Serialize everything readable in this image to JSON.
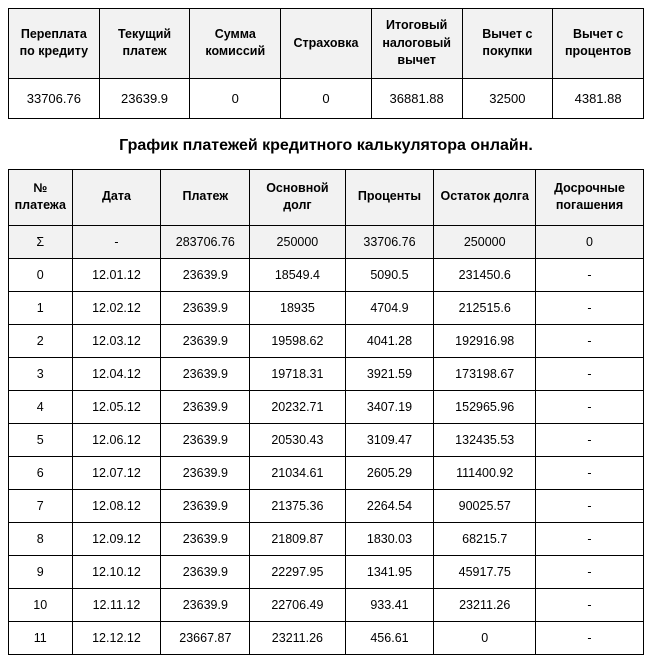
{
  "summary": {
    "headers": [
      "Переплата по кредиту",
      "Текущий платеж",
      "Сумма комиссий",
      "Страховка",
      "Итоговый налоговый вычет",
      "Вычет с покупки",
      "Вычет с процентов"
    ],
    "values": [
      "33706.76",
      "23639.9",
      "0",
      "0",
      "36881.88",
      "32500",
      "4381.88"
    ]
  },
  "title": "График платежей кредитного калькулятора онлайн.",
  "schedule": {
    "headers": [
      "№ платежа",
      "Дата",
      "Платеж",
      "Основной долг",
      "Проценты",
      "Остаток долга",
      "Досрочные погашения"
    ],
    "sigma": [
      "Σ",
      "-",
      "283706.76",
      "250000",
      "33706.76",
      "250000",
      "0"
    ],
    "rows": [
      [
        "0",
        "12.01.12",
        "23639.9",
        "18549.4",
        "5090.5",
        "231450.6",
        "-"
      ],
      [
        "1",
        "12.02.12",
        "23639.9",
        "18935",
        "4704.9",
        "212515.6",
        "-"
      ],
      [
        "2",
        "12.03.12",
        "23639.9",
        "19598.62",
        "4041.28",
        "192916.98",
        "-"
      ],
      [
        "3",
        "12.04.12",
        "23639.9",
        "19718.31",
        "3921.59",
        "173198.67",
        "-"
      ],
      [
        "4",
        "12.05.12",
        "23639.9",
        "20232.71",
        "3407.19",
        "152965.96",
        "-"
      ],
      [
        "5",
        "12.06.12",
        "23639.9",
        "20530.43",
        "3109.47",
        "132435.53",
        "-"
      ],
      [
        "6",
        "12.07.12",
        "23639.9",
        "21034.61",
        "2605.29",
        "111400.92",
        "-"
      ],
      [
        "7",
        "12.08.12",
        "23639.9",
        "21375.36",
        "2264.54",
        "90025.57",
        "-"
      ],
      [
        "8",
        "12.09.12",
        "23639.9",
        "21809.87",
        "1830.03",
        "68215.7",
        "-"
      ],
      [
        "9",
        "12.10.12",
        "23639.9",
        "22297.95",
        "1341.95",
        "45917.75",
        "-"
      ],
      [
        "10",
        "12.11.12",
        "23639.9",
        "22706.49",
        "933.41",
        "23211.26",
        "-"
      ],
      [
        "11",
        "12.12.12",
        "23667.87",
        "23211.26",
        "456.61",
        "0",
        "-"
      ]
    ]
  },
  "colors": {
    "header_bg": "#f2f2f2",
    "border": "#000000",
    "text": "#000000",
    "background": "#ffffff"
  },
  "typography": {
    "cell_fontsize": 12.5,
    "title_fontsize": 16
  }
}
